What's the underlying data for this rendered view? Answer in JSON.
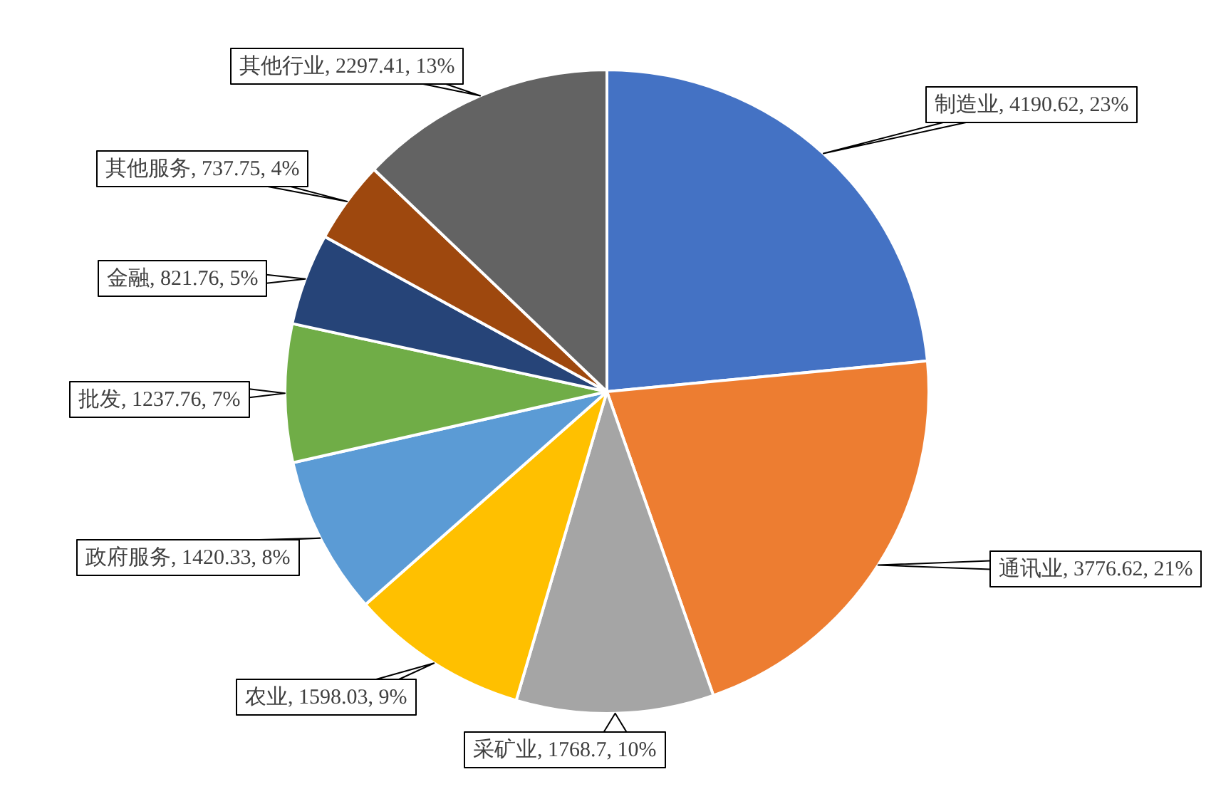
{
  "chart_data": {
    "type": "pie",
    "categories": [
      "制造业",
      "通讯业",
      "采矿业",
      "农业",
      "政府服务",
      "批发",
      "金融",
      "其他服务",
      "其他行业"
    ],
    "values": [
      4190.62,
      3776.62,
      1768.7,
      1598.03,
      1420.33,
      1237.76,
      821.76,
      737.75,
      2297.41
    ],
    "colors": [
      "#4472c4",
      "#ed7d31",
      "#a5a5a5",
      "#ffc000",
      "#5b9bd5",
      "#70ad47",
      "#264478",
      "#9e480e",
      "#636363"
    ],
    "value_labels": [
      "4190.62, 23%",
      "3776.62, 21%",
      "1768.7, 10%",
      "1598.03, 9%",
      "1420.33, 8%",
      "1237.76, 7%",
      "821.76, 5%",
      "737.75, 4%",
      "2297.41, 13%"
    ]
  }
}
